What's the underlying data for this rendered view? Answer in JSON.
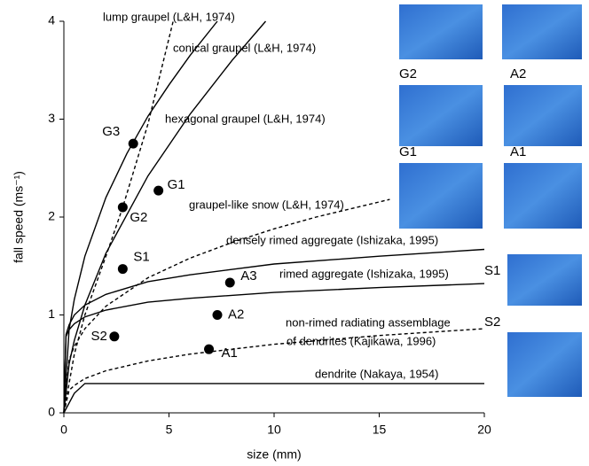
{
  "chart_data": {
    "type": "line",
    "xlabel": "size (mm)",
    "ylabel": "fall speed (ms⁻¹)",
    "xlim": [
      0,
      20
    ],
    "xticks": [
      0,
      5,
      10,
      15,
      20
    ],
    "ylim": [
      0,
      4
    ],
    "yticks": [
      0,
      1,
      2,
      3,
      4
    ],
    "series": [
      {
        "name": "lump graupel (L&H, 1974)",
        "color": "#000000",
        "dashed": false,
        "x": [
          0,
          0.25,
          0.5,
          1,
          2,
          3,
          4,
          5,
          6,
          7.3
        ],
        "values": [
          0,
          0.85,
          1.16,
          1.6,
          2.2,
          2.65,
          3.03,
          3.35,
          3.65,
          4.0
        ]
      },
      {
        "name": "conical graupel (L&H, 1974)",
        "color": "#000000",
        "dashed": true,
        "x": [
          0,
          0.5,
          1,
          2,
          2.8,
          4,
          5.2
        ],
        "values": [
          0,
          0.6,
          1.0,
          1.6,
          2.1,
          2.95,
          4.0
        ]
      },
      {
        "name": "hexagonal graupel (L&H, 1974)",
        "color": "#000000",
        "dashed": false,
        "x": [
          0,
          0.25,
          0.5,
          1,
          2,
          4,
          6,
          8,
          9.6
        ],
        "values": [
          0,
          0.5,
          0.74,
          1.1,
          1.63,
          2.42,
          3.05,
          3.6,
          4.0
        ]
      },
      {
        "name": "graupel-like snow (L&H, 1974)",
        "color": "#000000",
        "dashed": true,
        "x": [
          0,
          0.25,
          0.5,
          1,
          2,
          4,
          6,
          8,
          10,
          12,
          15.5
        ],
        "values": [
          0,
          0.54,
          0.68,
          0.86,
          1.09,
          1.38,
          1.58,
          1.74,
          1.88,
          2.0,
          2.18
        ]
      },
      {
        "name": "densely rimed aggregate (Ishizaka, 1995)",
        "color": "#000000",
        "dashed": false,
        "x": [
          0,
          0.1,
          0.25,
          0.5,
          1,
          2,
          4,
          6,
          10,
          15,
          20
        ],
        "values": [
          0,
          0.8,
          0.9,
          1.0,
          1.1,
          1.21,
          1.34,
          1.41,
          1.52,
          1.6,
          1.67
        ]
      },
      {
        "name": "rimed aggregate (Ishizaka, 1995)",
        "color": "#000000",
        "dashed": false,
        "x": [
          0,
          0.1,
          0.25,
          0.5,
          1,
          2,
          4,
          6,
          10,
          15,
          20
        ],
        "values": [
          0,
          0.78,
          0.85,
          0.91,
          0.98,
          1.05,
          1.13,
          1.17,
          1.23,
          1.28,
          1.32
        ]
      },
      {
        "name": [
          "non-rimed radiating assemblage",
          "of dendrites (Kajikawa, 1996)"
        ],
        "color": "#000000",
        "dashed": true,
        "x": [
          0,
          0.25,
          0.5,
          1,
          2,
          4,
          6,
          10,
          15,
          20
        ],
        "values": [
          0,
          0.23,
          0.28,
          0.35,
          0.43,
          0.53,
          0.6,
          0.7,
          0.79,
          0.86
        ]
      },
      {
        "name": "dendrite (Nakaya, 1954)",
        "color": "#000000",
        "dashed": false,
        "x": [
          0,
          0.5,
          1,
          20
        ],
        "values": [
          0,
          0.2,
          0.3,
          0.3
        ]
      }
    ],
    "points": {
      "color": "#000000",
      "labels": [
        "G3",
        "G2",
        "G1",
        "S1",
        "A3",
        "A2",
        "S2",
        "A1"
      ],
      "x": [
        3.3,
        2.8,
        4.5,
        2.8,
        7.9,
        7.3,
        2.4,
        6.9
      ],
      "y": [
        2.75,
        2.1,
        2.27,
        1.47,
        1.33,
        1.0,
        0.78,
        0.65
      ]
    },
    "photo_labels": [
      "G2",
      "A2",
      "G1",
      "A1",
      "S1",
      "S2"
    ]
  }
}
